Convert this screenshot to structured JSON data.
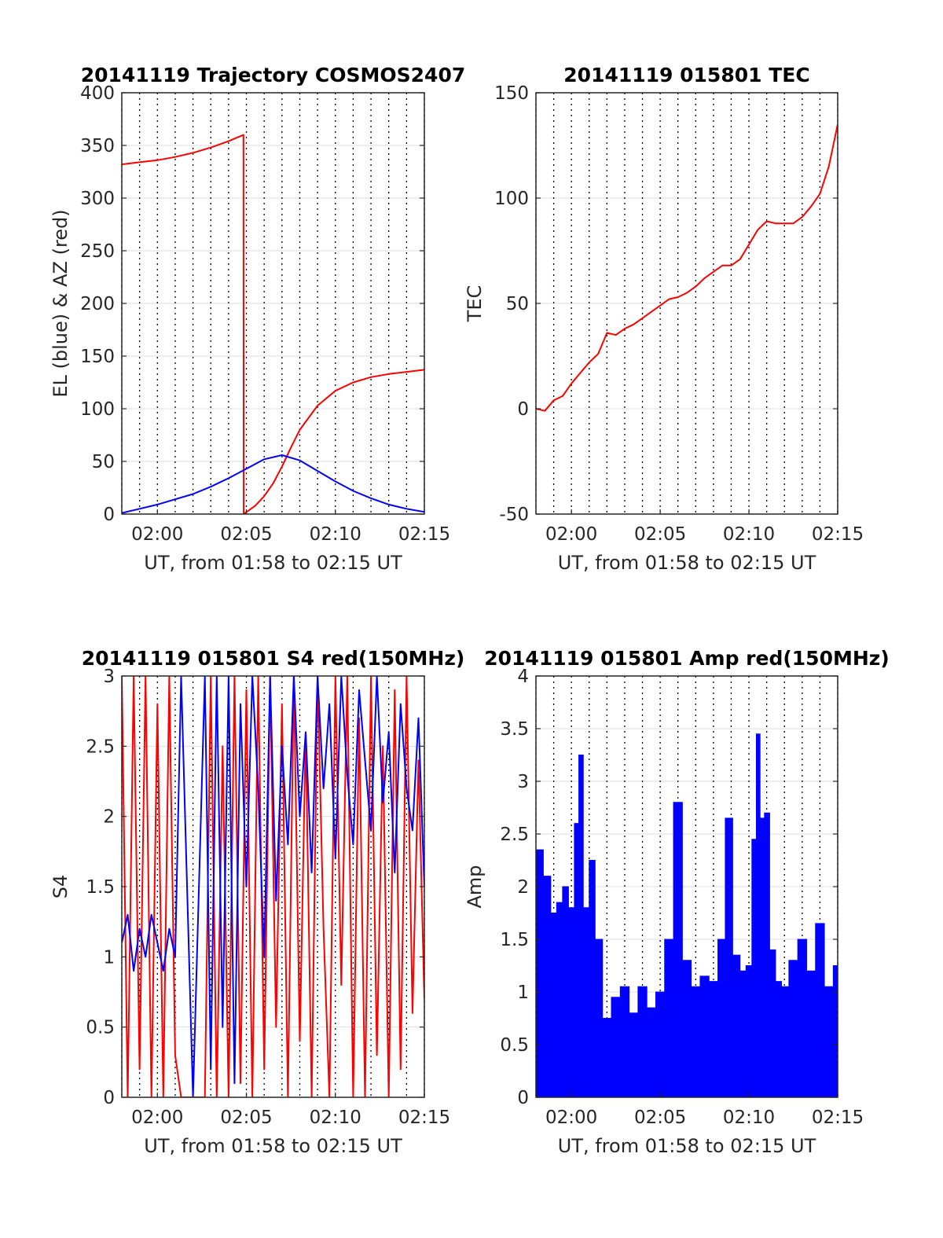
{
  "chart_data": [
    {
      "type": "line",
      "title": "20141119 Trajectory COSMOS2407",
      "xlabel": "UT, from 01:58 to 02:15 UT",
      "ylabel": "EL (blue) & AZ (red)",
      "xlim": [
        "01:58",
        "02:15"
      ],
      "ylim": [
        0,
        400
      ],
      "xticks": [
        "02:00",
        "02:05",
        "02:10",
        "02:15"
      ],
      "yticks": [
        "0",
        "50",
        "100",
        "150",
        "200",
        "250",
        "300",
        "350",
        "400"
      ],
      "grid": true,
      "series": [
        {
          "color": "#ff0000",
          "x": [
            "01:58",
            "01:59",
            "02:00",
            "02:01",
            "02:02",
            "02:03",
            "02:04",
            "02:04:50",
            "02:04:51",
            "02:05:30",
            "02:06",
            "02:06:30",
            "02:07",
            "02:07:30",
            "02:08",
            "02:09",
            "02:10",
            "02:11",
            "02:12",
            "02:13",
            "02:14",
            "02:15"
          ],
          "y": [
            332,
            334,
            336,
            339,
            343,
            348,
            354,
            360,
            0,
            8,
            17,
            29,
            45,
            63,
            80,
            103,
            117,
            125,
            130,
            133,
            135,
            137
          ],
          "break_after_index": 7
        },
        {
          "color": "#0000ff",
          "x": [
            "01:58",
            "01:59",
            "02:00",
            "02:01",
            "02:02",
            "02:03",
            "02:04",
            "02:05",
            "02:06",
            "02:07",
            "02:08",
            "02:09",
            "02:10",
            "02:11",
            "02:12",
            "02:13",
            "02:14",
            "02:15"
          ],
          "y": [
            1,
            5,
            9,
            14,
            19,
            26,
            34,
            43,
            52,
            56,
            51,
            41,
            31,
            22,
            15,
            9,
            5,
            2
          ]
        }
      ]
    },
    {
      "type": "line",
      "title": "20141119 015801 TEC",
      "xlabel": "UT, from 01:58 to 02:15 UT",
      "ylabel": "TEC",
      "xlim": [
        "01:58",
        "02:15"
      ],
      "ylim": [
        -50,
        150
      ],
      "xticks": [
        "02:00",
        "02:05",
        "02:10",
        "02:15"
      ],
      "yticks": [
        "-50",
        "0",
        "50",
        "100",
        "150"
      ],
      "grid": true,
      "series": [
        {
          "color": "#ff0000",
          "x": [
            "01:58",
            "01:58:30",
            "01:59",
            "01:59:30",
            "02:00",
            "02:00:30",
            "02:01",
            "02:01:30",
            "02:02",
            "02:02:30",
            "02:03",
            "02:03:30",
            "02:04",
            "02:04:30",
            "02:05",
            "02:05:30",
            "02:06",
            "02:06:30",
            "02:07",
            "02:07:30",
            "02:08",
            "02:08:30",
            "02:09",
            "02:09:30",
            "02:10",
            "02:10:30",
            "02:11",
            "02:11:30",
            "02:12",
            "02:12:30",
            "02:13",
            "02:13:30",
            "02:14",
            "02:14:30",
            "02:15"
          ],
          "y": [
            0,
            -1,
            4,
            6,
            12,
            17,
            22,
            26,
            36,
            35,
            38,
            40,
            43,
            46,
            49,
            52,
            53,
            55,
            58,
            62,
            65,
            68,
            68,
            71,
            78,
            85,
            89,
            88,
            88,
            88,
            91,
            96,
            102,
            115,
            135
          ]
        }
      ]
    },
    {
      "type": "line",
      "title": "20141119 015801 S4 red(150MHz)",
      "xlabel": "UT, from 01:58 to 02:15 UT",
      "ylabel": "S4",
      "xlim": [
        "01:58",
        "02:15"
      ],
      "ylim": [
        0,
        3
      ],
      "xticks": [
        "02:00",
        "02:05",
        "02:10",
        "02:15"
      ],
      "yticks": [
        "0",
        "0.5",
        "1",
        "1.5",
        "2",
        "2.5",
        "3"
      ],
      "grid": true,
      "series": [
        {
          "color": "#ff0000",
          "x": [
            "01:58",
            "01:58:20",
            "01:58:40",
            "01:59",
            "01:59:20",
            "01:59:40",
            "02:00",
            "02:00:20",
            "02:00:40",
            "02:01",
            "02:01:20",
            "02:02",
            "02:02:40",
            "02:03",
            "02:03:20",
            "02:03:40",
            "02:04",
            "02:04:20",
            "02:04:40",
            "02:05",
            "02:05:20",
            "02:05:40",
            "02:06",
            "02:06:20",
            "02:06:40",
            "02:07",
            "02:07:20",
            "02:07:40",
            "02:08",
            "02:08:20",
            "02:08:40",
            "02:09",
            "02:09:20",
            "02:09:40",
            "02:10",
            "02:10:20",
            "02:10:40",
            "02:11",
            "02:11:20",
            "02:11:40",
            "02:12",
            "02:12:20",
            "02:12:40",
            "02:13",
            "02:13:20",
            "02:13:40",
            "02:14",
            "02:14:20",
            "02:14:40",
            "02:15"
          ],
          "y": [
            3,
            0,
            3,
            0.2,
            3,
            0,
            2.8,
            0,
            3,
            0.3,
            0,
            0,
            0,
            3,
            0,
            2.5,
            0,
            3,
            0.1,
            2.9,
            0,
            3,
            0.2,
            3,
            0.5,
            2.8,
            0,
            3,
            0.4,
            2.6,
            0,
            3,
            1.2,
            0,
            3,
            0.8,
            3,
            0,
            2.7,
            0,
            3,
            0.3,
            2.5,
            0,
            2.9,
            0.2,
            3,
            0.6,
            2.4,
            0.7
          ]
        },
        {
          "color": "#0000ff",
          "x": [
            "01:58",
            "01:58:20",
            "01:58:40",
            "01:59",
            "01:59:20",
            "01:59:40",
            "02:00",
            "02:00:20",
            "02:00:40",
            "02:01",
            "02:01:20",
            "02:02",
            "02:02:40",
            "02:03",
            "02:03:20",
            "02:03:40",
            "02:04",
            "02:04:20",
            "02:04:40",
            "02:05",
            "02:05:20",
            "02:05:40",
            "02:06",
            "02:06:20",
            "02:06:40",
            "02:07",
            "02:07:20",
            "02:07:40",
            "02:08",
            "02:08:20",
            "02:08:40",
            "02:09",
            "02:09:20",
            "02:09:40",
            "02:10",
            "02:10:20",
            "02:10:40",
            "02:11",
            "02:11:20",
            "02:11:40",
            "02:12",
            "02:12:20",
            "02:12:40",
            "02:13",
            "02:13:20",
            "02:13:40",
            "02:14",
            "02:14:20",
            "02:14:40",
            "02:15"
          ],
          "y": [
            1.1,
            1.3,
            0.9,
            1.2,
            1.0,
            1.3,
            1.1,
            0.9,
            1.2,
            1.0,
            3,
            0,
            3,
            0.2,
            3,
            0.5,
            3,
            0.1,
            2.8,
            1.5,
            3,
            2.2,
            1.0,
            3,
            1.4,
            2.5,
            1.8,
            3,
            2.0,
            2.6,
            1.6,
            3,
            2.2,
            2.8,
            1.7,
            3,
            2.3,
            1.8,
            2.9,
            2.4,
            1.9,
            3,
            2.1,
            2.6,
            1.6,
            2.8,
            2.2,
            1.9,
            2.7,
            1.5
          ]
        }
      ]
    },
    {
      "type": "bar",
      "title": "20141119 015801 Amp red(150MHz)",
      "xlabel": "UT, from 01:58 to 02:15 UT",
      "ylabel": "Amp",
      "xlim": [
        "01:58",
        "02:15"
      ],
      "ylim": [
        0,
        4
      ],
      "xticks": [
        "02:00",
        "02:05",
        "02:10",
        "02:15"
      ],
      "yticks": [
        "0",
        "0.5",
        "1",
        "1.5",
        "2",
        "2.5",
        "3",
        "3.5",
        "4"
      ],
      "grid": true,
      "series": [
        {
          "color": "#0000ff",
          "x": [
            "01:58:10",
            "01:58:40",
            "01:59",
            "01:59:20",
            "01:59:40",
            "02:00",
            "02:00:20",
            "02:00:30",
            "02:00:50",
            "02:01:10",
            "02:01:30",
            "02:02",
            "02:02:30",
            "02:03",
            "02:03:30",
            "02:04",
            "02:04:30",
            "02:05",
            "02:05:30",
            "02:06",
            "02:06:30",
            "02:07",
            "02:07:30",
            "02:08",
            "02:08:30",
            "02:08:50",
            "02:09:20",
            "02:09:40",
            "02:10",
            "02:10:20",
            "02:10:30",
            "02:10:45",
            "02:11",
            "02:11:20",
            "02:11:40",
            "02:12",
            "02:12:30",
            "02:13",
            "02:13:30",
            "02:14",
            "02:14:30",
            "02:15"
          ],
          "y": [
            2.35,
            2.1,
            1.75,
            1.85,
            2.0,
            1.8,
            2.6,
            3.25,
            1.8,
            2.25,
            1.5,
            0.75,
            0.95,
            1.05,
            0.8,
            1.05,
            0.85,
            1.0,
            1.5,
            2.8,
            1.3,
            1.05,
            1.15,
            1.1,
            1.5,
            2.65,
            1.35,
            1.2,
            1.25,
            2.45,
            3.45,
            2.65,
            2.7,
            1.4,
            1.1,
            1.05,
            1.3,
            1.5,
            1.2,
            1.65,
            1.05,
            1.25
          ]
        }
      ]
    }
  ]
}
